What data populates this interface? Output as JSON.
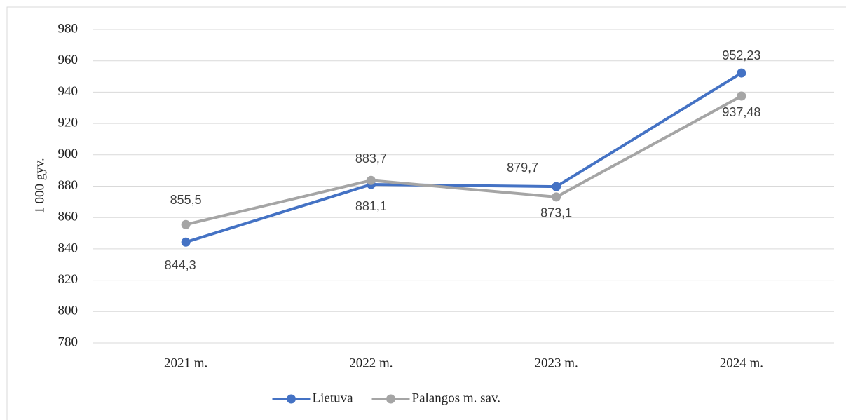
{
  "chart_data": {
    "type": "line",
    "y_label": "1 000 gyv.",
    "categories": [
      "2021 m.",
      "2022 m.",
      "2023 m.",
      "2024 m."
    ],
    "series": [
      {
        "name": "Lietuva",
        "color": "#4472c4",
        "values": [
          844.3,
          881.1,
          879.7,
          952.23
        ],
        "value_labels": [
          "844,3",
          "881,1",
          "879,7",
          "952,23"
        ]
      },
      {
        "name": "Palangos m. sav.",
        "color": "#a5a5a5",
        "values": [
          855.5,
          883.7,
          873.1,
          937.48
        ],
        "value_labels": [
          "855,5",
          "883,7",
          "873,1",
          "937,48"
        ]
      }
    ],
    "ylim": [
      780,
      980
    ],
    "yticks": [
      780,
      800,
      820,
      840,
      860,
      880,
      900,
      920,
      940,
      960,
      980
    ],
    "grid": true,
    "legend": "bottom"
  }
}
